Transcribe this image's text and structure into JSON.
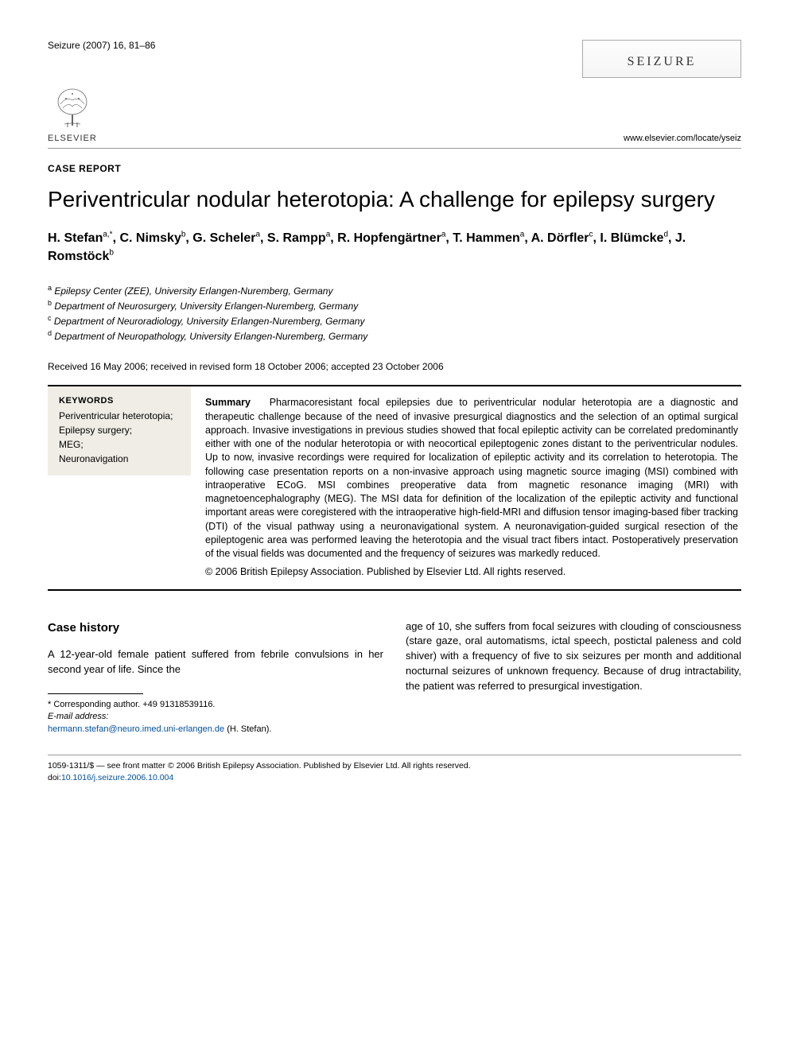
{
  "header": {
    "citation": "Seizure (2007) 16, 81–86",
    "journal_name": "SEIZURE",
    "journal_url": "www.elsevier.com/locate/yseiz",
    "publisher_name": "ELSEVIER"
  },
  "article": {
    "type": "CASE REPORT",
    "title": "Periventricular nodular heterotopia: A challenge for epilepsy surgery",
    "authors_html": "H. Stefan<sup>a,*</sup>, C. Nimsky<sup>b</sup>, G. Scheler<sup>a</sup>, S. Rampp<sup>a</sup>, R. Hopfengärtner<sup>a</sup>, T. Hammen<sup>a</sup>, A. Dörfler<sup>c</sup>, I. Blümcke<sup>d</sup>, J. Romstöck<sup>b</sup>",
    "affiliations": [
      {
        "sup": "a",
        "text": "Epilepsy Center (ZEE), University Erlangen-Nuremberg, Germany"
      },
      {
        "sup": "b",
        "text": "Department of Neurosurgery, University Erlangen-Nuremberg, Germany"
      },
      {
        "sup": "c",
        "text": "Department of Neuroradiology, University Erlangen-Nuremberg, Germany"
      },
      {
        "sup": "d",
        "text": "Department of Neuropathology, University Erlangen-Nuremberg, Germany"
      }
    ],
    "dates": "Received 16 May 2006; received in revised form 18 October 2006; accepted 23 October 2006"
  },
  "keywords": {
    "heading": "KEYWORDS",
    "items": "Periventricular heterotopia;\nEpilepsy surgery;\nMEG;\nNeuronavigation"
  },
  "summary": {
    "label": "Summary",
    "text": "Pharmacoresistant focal epilepsies due to periventricular nodular heterotopia are a diagnostic and therapeutic challenge because of the need of invasive presurgical diagnostics and the selection of an optimal surgical approach. Invasive investigations in previous studies showed that focal epileptic activity can be correlated predominantly either with one of the nodular heterotopia or with neocortical epileptogenic zones distant to the periventricular nodules. Up to now, invasive recordings were required for localization of epileptic activity and its correlation to heterotopia. The following case presentation reports on a non-invasive approach using magnetic source imaging (MSI) combined with intraoperative ECoG. MSI combines preoperative data from magnetic resonance imaging (MRI) with magnetoencephalography (MEG). The MSI data for definition of the localization of the epileptic activity and functional important areas were coregistered with the intraoperative high-field-MRI and diffusion tensor imaging-based fiber tracking (DTI) of the visual pathway using a neuronavigational system. A neuronavigation-guided surgical resection of the epileptogenic area was performed leaving the heterotopia and the visual tract fibers intact. Postoperatively preservation of the visual fields was documented and the frequency of seizures was markedly reduced.",
    "copyright": "© 2006 British Epilepsy Association. Published by Elsevier Ltd. All rights reserved."
  },
  "body": {
    "section_heading": "Case history",
    "col1_text": "A 12-year-old female patient suffered from febrile convulsions in her second year of life. Since the",
    "col2_text": "age of 10, she suffers from focal seizures with clouding of consciousness (stare gaze, oral automatisms, ictal speech, postictal paleness and cold shiver) with a frequency of five to six seizures per month and additional nocturnal seizures of unknown frequency. Because of drug intractability, the patient was referred to presurgical investigation."
  },
  "footnotes": {
    "corresponding": "* Corresponding author. +49 91318539116.",
    "email_label": "E-mail address:",
    "email": "hermann.stefan@neuro.imed.uni-erlangen.de",
    "email_suffix": " (H. Stefan)."
  },
  "bottom": {
    "line1": "1059-1311/$ — see front matter © 2006 British Epilepsy Association. Published by Elsevier Ltd. All rights reserved.",
    "doi_prefix": "doi:",
    "doi": "10.1016/j.seizure.2006.10.004"
  },
  "colors": {
    "link": "#0050a0",
    "keyword_bg": "#efede5",
    "text": "#000000",
    "rule": "#999999"
  }
}
